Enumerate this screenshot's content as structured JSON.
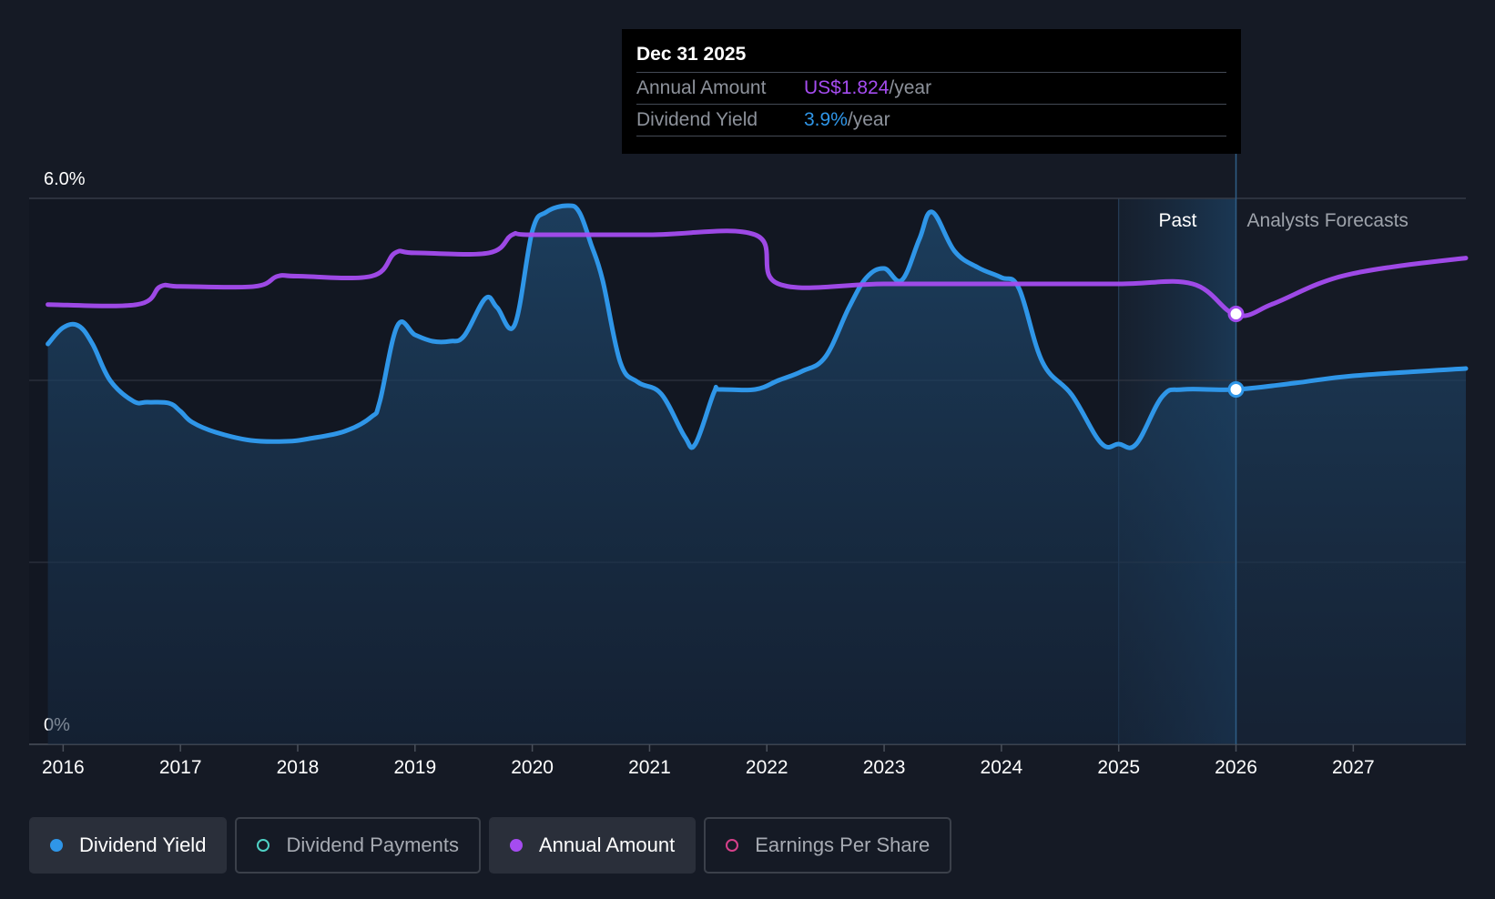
{
  "chart_data": {
    "type": "line",
    "title": "",
    "y_axis": {
      "min": 0,
      "max": 6.0,
      "labels": [
        "6.0%",
        "0%"
      ],
      "label_values": [
        6.0,
        0
      ],
      "gridlines": [
        0,
        2,
        4,
        6
      ]
    },
    "x_axis": {
      "min": 2015.71,
      "max": 2027.96,
      "ticks": [
        "2016",
        "2017",
        "2018",
        "2019",
        "2020",
        "2021",
        "2022",
        "2023",
        "2024",
        "2025",
        "2026",
        "2027"
      ],
      "tick_values": [
        2016,
        2017,
        2018,
        2019,
        2020,
        2021,
        2022,
        2023,
        2024,
        2025,
        2026,
        2027
      ]
    },
    "regions": {
      "past_label": "Past",
      "forecast_label": "Analysts Forecasts",
      "past_band_start": 2025.0,
      "divider": 2026.0
    },
    "series": [
      {
        "name": "Dividend Yield",
        "unit": "%",
        "color": "#2f96e8",
        "x": [
          2015.87,
          2016.0,
          2016.13,
          2016.25,
          2016.4,
          2016.6,
          2016.72,
          2016.9,
          2017.0,
          2017.1,
          2017.3,
          2017.6,
          2017.9,
          2018.1,
          2018.4,
          2018.63,
          2018.7,
          2018.85,
          2019.0,
          2019.15,
          2019.3,
          2019.42,
          2019.6,
          2019.7,
          2019.85,
          2020.0,
          2020.12,
          2020.3,
          2020.4,
          2020.5,
          2020.6,
          2020.75,
          2020.9,
          2021.1,
          2021.3,
          2021.39,
          2021.55,
          2021.6,
          2021.9,
          2022.1,
          2022.3,
          2022.5,
          2022.7,
          2022.85,
          2023.0,
          2023.15,
          2023.3,
          2023.41,
          2023.6,
          2023.8,
          2024.0,
          2024.15,
          2024.35,
          2024.6,
          2024.85,
          2025.0,
          2025.15,
          2025.37,
          2025.55,
          2026.0,
          2026.5,
          2027.0,
          2027.96
        ],
        "values": [
          4.4,
          4.58,
          4.6,
          4.4,
          4.0,
          3.77,
          3.76,
          3.75,
          3.66,
          3.54,
          3.43,
          3.34,
          3.33,
          3.36,
          3.44,
          3.6,
          3.77,
          4.6,
          4.5,
          4.43,
          4.43,
          4.49,
          4.9,
          4.8,
          4.61,
          5.64,
          5.85,
          5.92,
          5.85,
          5.5,
          5.1,
          4.2,
          3.98,
          3.85,
          3.38,
          3.3,
          3.87,
          3.9,
          3.9,
          4.0,
          4.1,
          4.26,
          4.8,
          5.13,
          5.23,
          5.1,
          5.55,
          5.85,
          5.42,
          5.24,
          5.13,
          5.01,
          4.2,
          3.84,
          3.31,
          3.3,
          3.3,
          3.82,
          3.9,
          3.9,
          3.97,
          4.05,
          4.13
        ]
      },
      {
        "name": "Annual Amount",
        "unit": "US$",
        "color": "#a54cf0",
        "x": [
          2015.87,
          2016.63,
          2016.83,
          2017.0,
          2017.63,
          2017.83,
          2018.0,
          2018.63,
          2018.83,
          2019.0,
          2019.63,
          2019.83,
          2020.0,
          2021.0,
          2021.9,
          2022.1,
          2023.0,
          2024.0,
          2025.0,
          2025.63,
          2026.0,
          2026.3,
          2026.7,
          2027.0,
          2027.4,
          2027.96
        ],
        "values": [
          1.86,
          1.86,
          1.93,
          1.93,
          1.93,
          1.97,
          1.97,
          1.97,
          2.06,
          2.06,
          2.06,
          2.13,
          2.13,
          2.13,
          2.13,
          1.94,
          1.94,
          1.94,
          1.94,
          1.94,
          1.82,
          1.86,
          1.94,
          1.98,
          2.01,
          2.04
        ]
      }
    ],
    "highlight": {
      "x": 2026.0,
      "yield": 3.9,
      "amount": 1.824
    }
  },
  "tooltip": {
    "date": "Dec 31 2025",
    "amount_label": "Annual Amount",
    "amount_value": "US$1.824",
    "amount_unit": "/year",
    "yield_label": "Dividend Yield",
    "yield_value": "3.9%",
    "yield_unit": "/year"
  },
  "legend": [
    {
      "label": "Dividend Yield",
      "color": "#2f96e8",
      "active": true,
      "filled": true
    },
    {
      "label": "Dividend Payments",
      "color": "#4fd1c5",
      "active": false,
      "filled": false
    },
    {
      "label": "Annual Amount",
      "color": "#a54cf0",
      "active": true,
      "filled": true
    },
    {
      "label": "Earnings Per Share",
      "color": "#d6408a",
      "active": false,
      "filled": false
    }
  ]
}
